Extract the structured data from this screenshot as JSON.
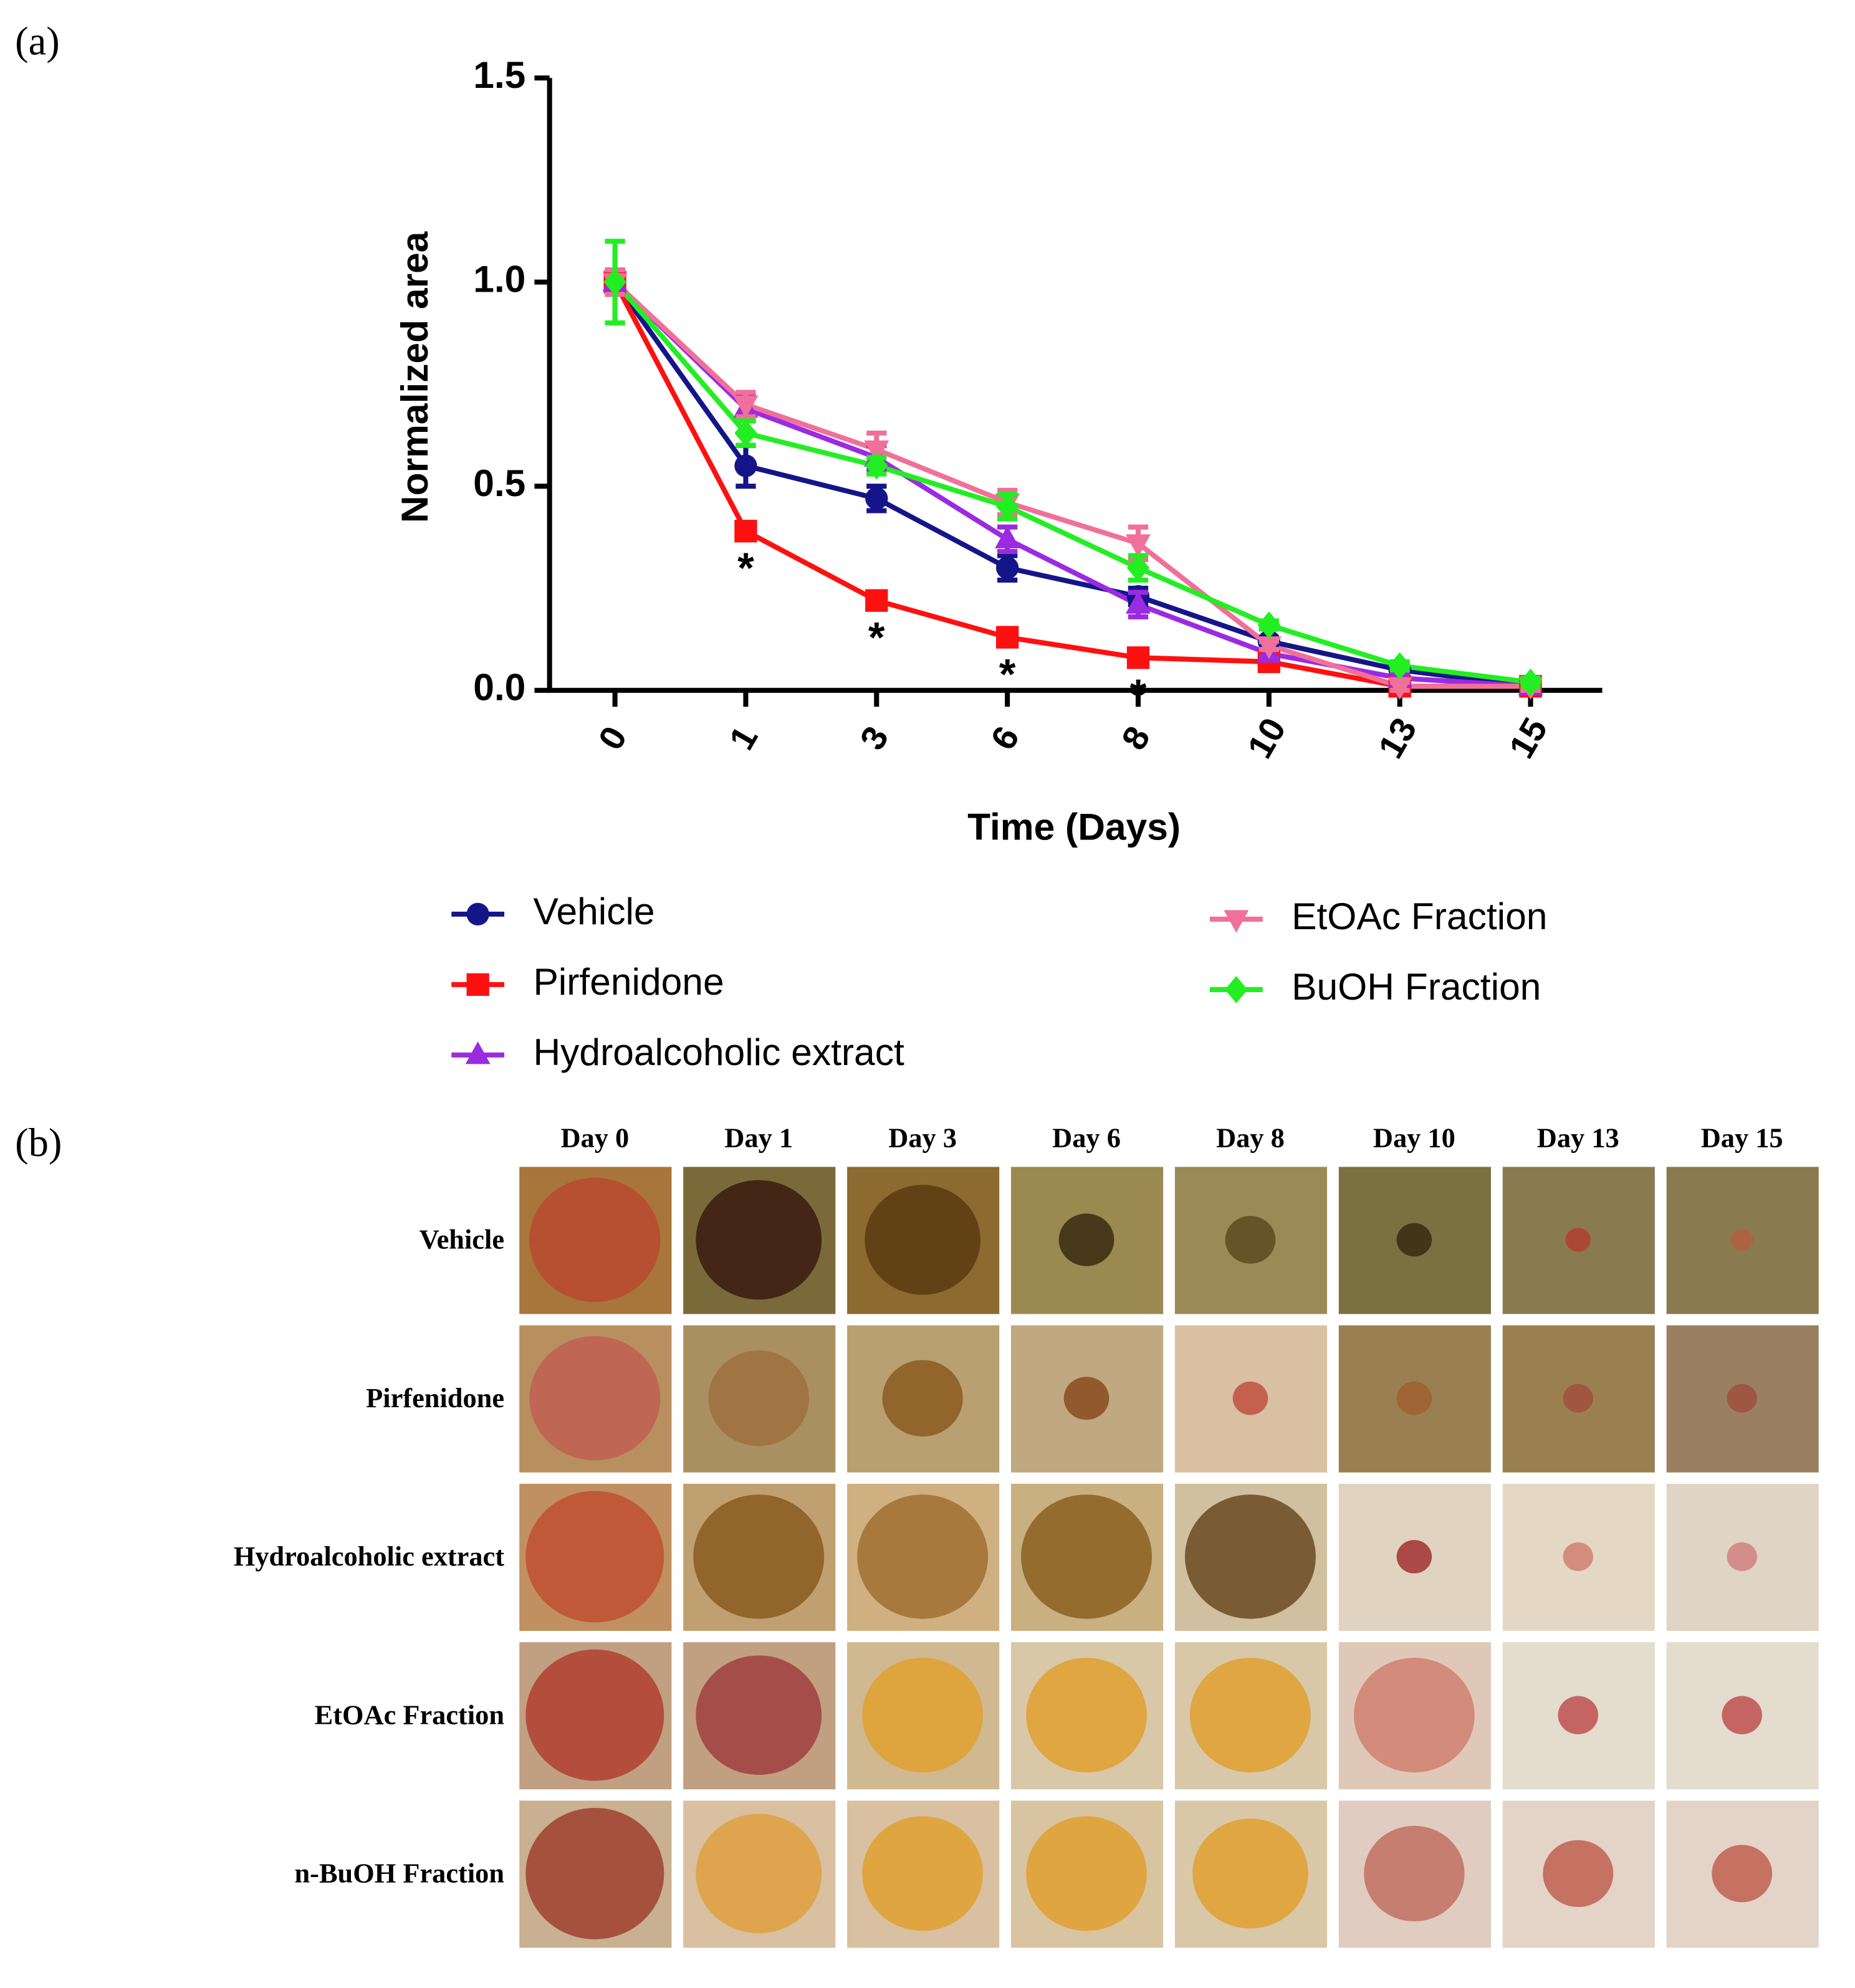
{
  "panel_a_label": "(a)",
  "chart_data": {
    "type": "line",
    "xlabel": "Time (Days)",
    "ylabel": "Normalized area",
    "categories": [
      "0",
      "1",
      "3",
      "6",
      "8",
      "10",
      "13",
      "15"
    ],
    "ylim": [
      0,
      1.5
    ],
    "yticks": [
      {
        "value": 0,
        "label": "0.0"
      },
      {
        "value": 0.5,
        "label": "0.5"
      },
      {
        "value": 1.0,
        "label": "1.0"
      },
      {
        "value": 1.5,
        "label": "1.5"
      }
    ],
    "legend": "bottom",
    "series": [
      {
        "name": "Vehicle",
        "color": "#15158a",
        "marker": "circle",
        "values": [
          1.0,
          0.55,
          0.47,
          0.3,
          0.23,
          0.12,
          0.05,
          0.01
        ],
        "errors": [
          0.03,
          0.05,
          0.03,
          0.03,
          0.02,
          0.01,
          0.01,
          0.01
        ]
      },
      {
        "name": "Pirfenidone",
        "color": "#ff1010",
        "marker": "square",
        "values": [
          1.0,
          0.39,
          0.22,
          0.13,
          0.08,
          0.07,
          0.01,
          0.01
        ],
        "errors": [
          0.02,
          0.02,
          0.02,
          0.02,
          0.01,
          0.01,
          0.01,
          0.01
        ]
      },
      {
        "name": "Hydroalcoholic extract",
        "color": "#9b2be0",
        "marker": "triangle-up",
        "values": [
          1.0,
          0.69,
          0.57,
          0.37,
          0.21,
          0.09,
          0.03,
          0.01
        ],
        "errors": [
          0.03,
          0.03,
          0.03,
          0.03,
          0.03,
          0.01,
          0.01,
          0.01
        ]
      },
      {
        "name": "EtOAc Fraction",
        "color": "#f0709a",
        "marker": "triangle-down",
        "values": [
          1.0,
          0.7,
          0.59,
          0.46,
          0.36,
          0.11,
          0.01,
          0.01
        ],
        "errors": [
          0.03,
          0.03,
          0.04,
          0.03,
          0.04,
          0.01,
          0.01,
          0.01
        ]
      },
      {
        "name": "BuOH Fraction",
        "color": "#22ee22",
        "marker": "diamond",
        "values": [
          1.0,
          0.63,
          0.55,
          0.45,
          0.3,
          0.16,
          0.06,
          0.02
        ],
        "errors": [
          0.1,
          0.03,
          0.02,
          0.03,
          0.03,
          0.01,
          0.01,
          0.01
        ]
      }
    ],
    "annotations": [
      {
        "label": "*",
        "x": "1"
      },
      {
        "label": "*",
        "x": "3"
      },
      {
        "label": "*",
        "x": "6"
      },
      {
        "label": "*",
        "x": "8"
      }
    ]
  },
  "panel_b": {
    "label": "(b)",
    "columns": [
      "Day 0",
      "Day 1",
      "Day 3",
      "Day 6",
      "Day 8",
      "Day 10",
      "Day 13",
      "Day 15"
    ],
    "rows": [
      "Vehicle",
      "Pirfenidone",
      "Hydroalcoholic extract",
      "EtOAc Fraction",
      "n-BuOH Fraction"
    ]
  }
}
